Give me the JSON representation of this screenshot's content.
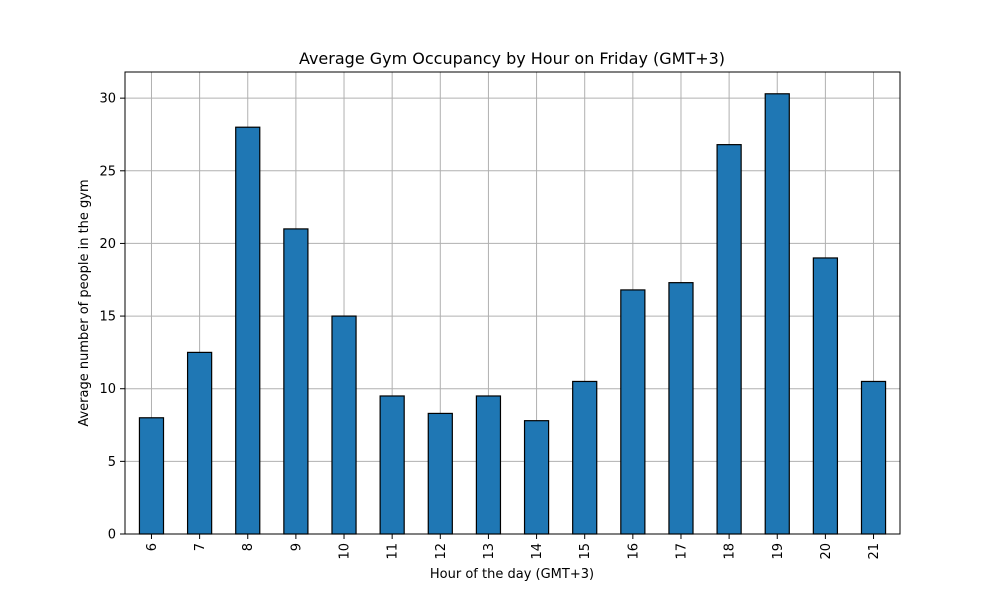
{
  "chart_data": {
    "type": "bar",
    "title": "Average Gym Occupancy by Hour on Friday (GMT+3)",
    "xlabel": "Hour of the day (GMT+3)",
    "ylabel": "Average number of people in the gym",
    "categories": [
      "6",
      "7",
      "8",
      "9",
      "10",
      "11",
      "12",
      "13",
      "14",
      "15",
      "16",
      "17",
      "18",
      "19",
      "20",
      "21"
    ],
    "values": [
      8.0,
      12.5,
      28.0,
      21.0,
      15.0,
      9.5,
      8.3,
      9.5,
      7.8,
      10.5,
      16.8,
      17.3,
      26.8,
      30.3,
      19.0,
      10.5
    ],
    "yticks": [
      0,
      5,
      10,
      15,
      20,
      25,
      30
    ],
    "ylim": [
      0,
      31.8
    ],
    "grid": true,
    "bar_color": "#1f77b4",
    "edge_color": "#000000"
  }
}
